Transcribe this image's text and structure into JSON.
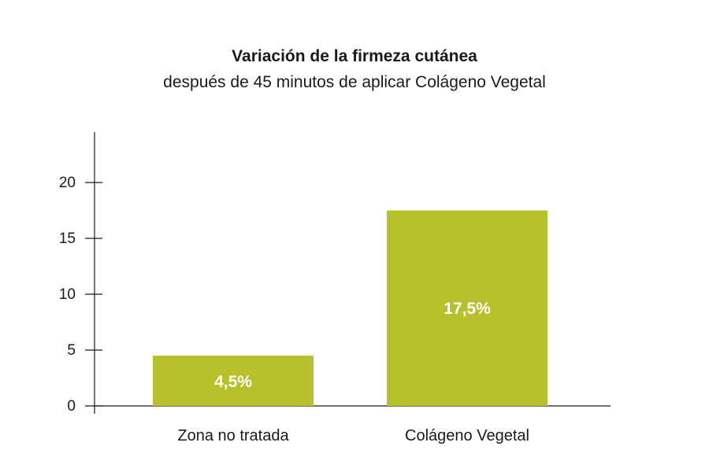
{
  "chart_data": {
    "type": "bar",
    "title": "Variación de la firmeza cutánea",
    "subtitle": "después de 45 minutos de aplicar Colágeno Vegetal",
    "categories": [
      "Zona no tratada",
      "Colágeno Vegetal"
    ],
    "values": [
      4.5,
      17.5
    ],
    "data_labels": [
      "4,5%",
      "17,5%"
    ],
    "xlabel": "",
    "ylabel": "",
    "ylim": [
      0,
      24
    ],
    "yticks": [
      0,
      5,
      10,
      15,
      20
    ],
    "grid": false,
    "bar_color": "#b7c12b"
  }
}
